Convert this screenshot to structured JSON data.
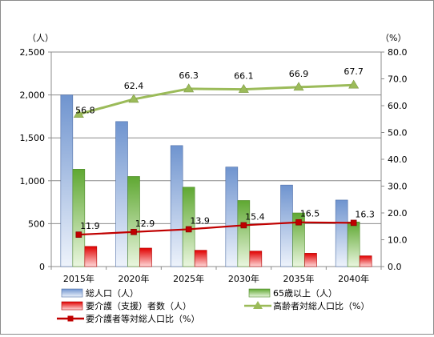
{
  "chart_data": {
    "type": "bar",
    "categories": [
      "2015年",
      "2020年",
      "2025年",
      "2030年",
      "2035年",
      "2040年"
    ],
    "y_left": {
      "unit_label": "（人）",
      "ylim": [
        0,
        2500
      ],
      "ticks": [
        "0",
        "500",
        "1,000",
        "1,500",
        "2,000",
        "2,500"
      ],
      "tick_values": [
        0,
        500,
        1000,
        1500,
        2000,
        2500
      ]
    },
    "y_right": {
      "unit_label": "（%）",
      "ylim": [
        0,
        80
      ],
      "ticks": [
        "0.0",
        "10.0",
        "20.0",
        "30.0",
        "40.0",
        "50.0",
        "60.0",
        "70.0",
        "80.0"
      ],
      "tick_values": [
        0,
        10,
        20,
        30,
        40,
        50,
        60,
        70,
        80
      ]
    },
    "grid": true,
    "legend_position": "bottom",
    "series": [
      {
        "name": "総人口（人）",
        "kind": "bar",
        "axis": "left",
        "color": "#8eb4e3",
        "values": [
          2000,
          1690,
          1410,
          1160,
          950,
          775
        ]
      },
      {
        "name": "65歳以上（人）",
        "kind": "bar",
        "axis": "left",
        "color": "#92d050",
        "values": [
          1135,
          1050,
          925,
          770,
          625,
          520
        ]
      },
      {
        "name": "要介護（支援）者数（人）",
        "kind": "bar",
        "axis": "left",
        "color": "#ff0000",
        "values": [
          235,
          215,
          190,
          180,
          155,
          125
        ]
      },
      {
        "name": "高齢者対総人口比（%）",
        "kind": "line",
        "axis": "right",
        "color": "#9bbb59",
        "marker": "triangle",
        "values": [
          56.8,
          62.4,
          66.3,
          66.1,
          66.9,
          67.7
        ],
        "labels": [
          "56.8",
          "62.4",
          "66.3",
          "66.1",
          "66.9",
          "67.7"
        ]
      },
      {
        "name": "要介護者等対総人口比（%）",
        "kind": "line",
        "axis": "right",
        "color": "#c00000",
        "marker": "square",
        "values": [
          11.9,
          12.9,
          13.9,
          15.4,
          16.5,
          16.3
        ],
        "labels": [
          "11.9",
          "12.9",
          "13.9",
          "15.4",
          "16.5",
          "16.3"
        ]
      }
    ]
  }
}
